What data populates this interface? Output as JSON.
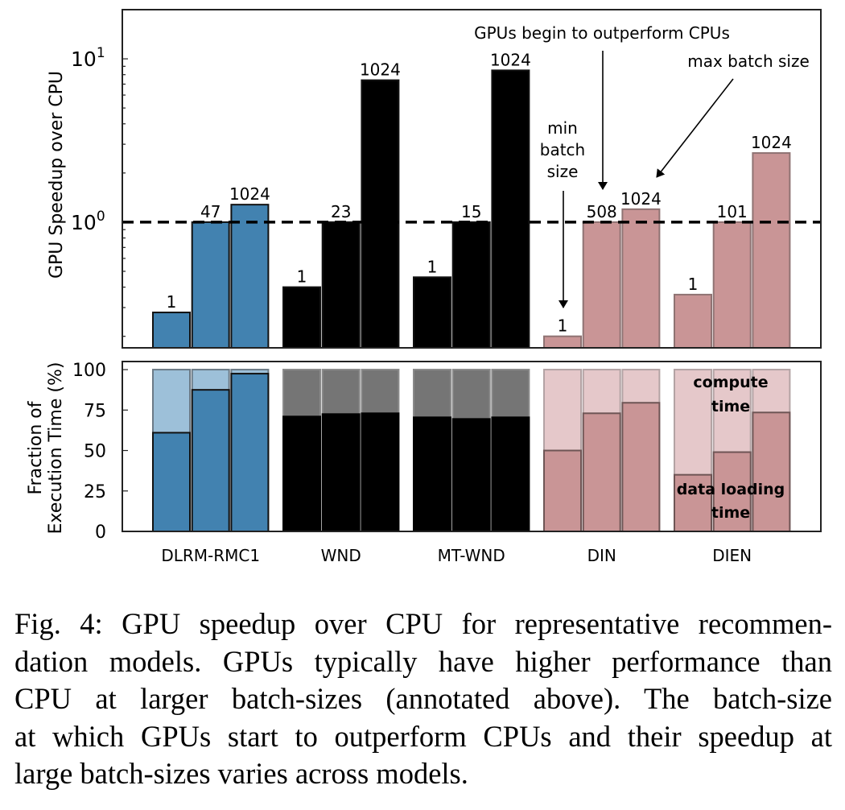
{
  "chart_data": [
    {
      "type": "bar",
      "panel": "top",
      "title": "",
      "ylabel": "GPU Speedup over CPU",
      "xlabel": "",
      "yscale": "log",
      "ylim": [
        0.17,
        20
      ],
      "ytick_labels": [
        {
          "value": 1,
          "base": "10",
          "exp": "0"
        },
        {
          "value": 10,
          "base": "10",
          "exp": "1"
        }
      ],
      "reference_line": {
        "value": 1.0,
        "style": "dashed"
      },
      "categories": [
        "DLRM-RMC1",
        "WND",
        "MT-WND",
        "DIN",
        "DIEN"
      ],
      "series": [
        {
          "name": "min batch size",
          "values": [
            0.28,
            0.4,
            0.46,
            0.2,
            0.36
          ],
          "batch_labels": [
            "1",
            "1",
            "1",
            "1",
            "1"
          ]
        },
        {
          "name": "GPUs begin to outperform CPUs",
          "values": [
            1.0,
            1.0,
            1.0,
            1.0,
            1.0
          ],
          "batch_labels": [
            "47",
            "23",
            "15",
            "508",
            "101"
          ]
        },
        {
          "name": "max batch size",
          "values": [
            1.28,
            7.4,
            8.5,
            1.2,
            2.65
          ],
          "batch_labels": [
            "1024",
            "1024",
            "1024",
            "1024",
            "1024"
          ]
        }
      ],
      "annotations": [
        {
          "id": "outperform",
          "text": "GPUs begin to outperform CPUs"
        },
        {
          "id": "max",
          "text": "max batch size"
        },
        {
          "id": "min",
          "lines": [
            "min",
            "batch",
            "size"
          ]
        }
      ]
    },
    {
      "type": "bar",
      "panel": "bottom",
      "stacked": true,
      "ylabel_lines": [
        "Fraction of",
        "Execution Time (%)"
      ],
      "ylim": [
        0,
        105
      ],
      "yticks": [
        0,
        25,
        50,
        75,
        100
      ],
      "ytick_labels": [
        "0",
        "25",
        "50",
        "75",
        "100"
      ],
      "categories": [
        "DLRM-RMC1",
        "WND",
        "MT-WND",
        "DIN",
        "DIEN"
      ],
      "series": [
        {
          "name": "data loading time",
          "values": [
            [
              61,
              87.5,
              97.5
            ],
            [
              71,
              72.5,
              73
            ],
            [
              70.5,
              69.5,
              70.5
            ],
            [
              50,
              73,
              79.5
            ],
            [
              35,
              49,
              73.5
            ]
          ]
        },
        {
          "name": "compute time",
          "values": [
            [
              39,
              12.5,
              2.5
            ],
            [
              29,
              27.5,
              27
            ],
            [
              29.5,
              30.5,
              29.5
            ],
            [
              50,
              27,
              20.5
            ],
            [
              65,
              51,
              26.5
            ]
          ]
        }
      ],
      "annotations": [
        {
          "id": "compute",
          "lines": [
            "compute",
            "time"
          ]
        },
        {
          "id": "data",
          "lines": [
            "data loading",
            "time"
          ]
        }
      ]
    }
  ],
  "colors": {
    "DLRM-RMC1": {
      "main": "#4282b0",
      "light": "#9dc0d9",
      "edge": "#111111",
      "light_edge": "#6b7a86"
    },
    "WND": {
      "main": "#000000",
      "light": "#757575",
      "edge": "#000000",
      "light_edge": "#8a8a8a"
    },
    "MT-WND": {
      "main": "#000000",
      "light": "#757575",
      "edge": "#000000",
      "light_edge": "#8a8a8a"
    },
    "DIN": {
      "main": "#c99596",
      "light": "#e5c8ca",
      "edge": "#6e5555",
      "light_edge": "#b3a3a4"
    },
    "DIEN": {
      "main": "#c99596",
      "light": "#e5c8ca",
      "edge": "#6e5555",
      "light_edge": "#b3a3a4"
    }
  },
  "caption": {
    "lines": [
      "Fig. 4: GPU speedup over CPU for representative recommen-",
      "dation models. GPUs typically have higher performance than",
      "CPU at larger batch-sizes (annotated above). The batch-size",
      "at which GPUs start to outperform CPUs and their speedup at",
      "large batch-sizes varies across models."
    ]
  }
}
